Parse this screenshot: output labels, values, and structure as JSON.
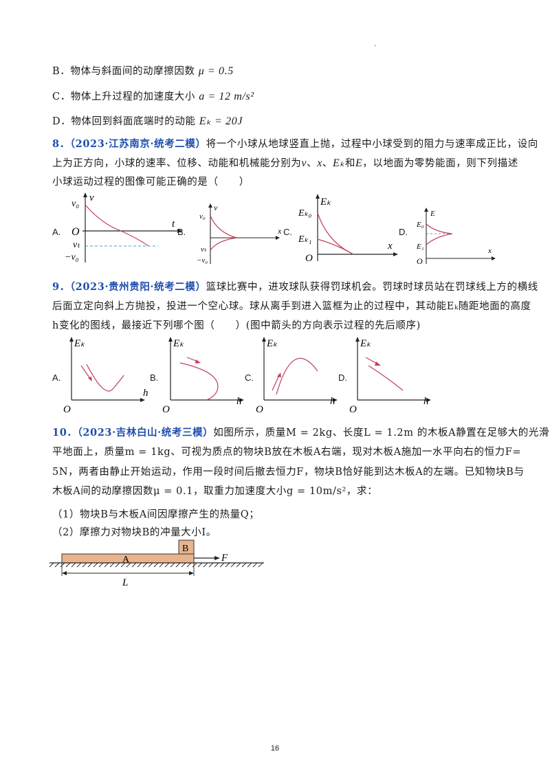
{
  "top_mark": "·",
  "q7": {
    "optB_text": "B．物体与斜面间的动摩擦因数",
    "optB_math": "μ = 0.5",
    "optC_text": "C．物体上升过程的加速度大小",
    "optC_math": "a = 12 m/s²",
    "optD_text": "D．物体回到斜面底端时的动能",
    "optD_math": "Eₖ = 20J"
  },
  "q8": {
    "number": "8．",
    "source": "（2023·江苏南京·统考二模）",
    "line1": "将一个小球从地球竖直上抛，过程中小球受到的阻力与速率成正比，设向",
    "line2_a": "上为正方向，小球的速率、位移、动能和机械能分别为",
    "var_v": "v",
    "sep1": "、",
    "var_x": "x",
    "sep2": "、",
    "var_ek": "Eₖ",
    "and": "和",
    "var_e": "E",
    "line2_b": "，以地面为零势能面，则下列描述",
    "line3": "小球运动过程的图像可能正确的是（　　）",
    "options": [
      "A.",
      "B.",
      "C.",
      "D."
    ],
    "graphA": {
      "y_axis": "v",
      "x_axis": "t",
      "origin": "O",
      "v0": "v₀",
      "vt": "vₜ",
      "neg_v0": "−v₀"
    },
    "graphB": {
      "y_axis": "v",
      "x_axis": "x",
      "v0": "v₀",
      "vt": "vₜ",
      "neg_v0": "−v₀"
    },
    "graphC": {
      "y_axis": "Eₖ",
      "x_axis": "x",
      "origin": "O",
      "ek0": "Eₖ₀",
      "ek1": "Eₖ₁"
    },
    "graphD": {
      "y_axis": "E",
      "x_axis": "x",
      "origin": "O",
      "e0": "E₀",
      "e1": "E₁"
    }
  },
  "q9": {
    "number": "9．",
    "source": "（2023·贵州贵阳·统考二模）",
    "line1": "篮球比赛中，进攻球队获得罚球机会。罚球时球员站在罚球线上方的横线",
    "line2": "后面立定向斜上方抛投，投进一个空心球。球从离手到进入篮框为止的过程中，其动能Eₖ随距地面的高度",
    "line3": "h变化的图线，最接近下列哪个图（　　）(图中箭头的方向表示过程的先后顺序)",
    "options": [
      "A.",
      "B.",
      "C.",
      "D."
    ],
    "y_axis": "Eₖ",
    "x_axis": "h",
    "origin": "O"
  },
  "q10": {
    "number": "10．",
    "source": "（2023·吉林白山·统考三模）",
    "line1": "如图所示，质量M = 2kg、长度L = 1.2m 的木板A静置在足够大的光滑水",
    "line2": "平地面上，质量m = 1kg、可视为质点的物块B放在木板A右端，现对木板A施加一水平向右的恒力F=",
    "line3": "5N，两者由静止开始运动，作用一段时间后撤去恒力F，物块B恰好能到达木板A的左端。已知物块B与",
    "line4": "木板A间的动摩擦因数μ = 0.1，取重力加速度大小g = 10m/s²，求：",
    "sub1": "（1）物块B与木板A间因摩擦产生的热量Q；",
    "sub2": "（2）摩擦力对物块B的冲量大小I。",
    "figure": {
      "board": "A",
      "block": "B",
      "force": "F",
      "length": "L"
    }
  },
  "page_number": "16"
}
